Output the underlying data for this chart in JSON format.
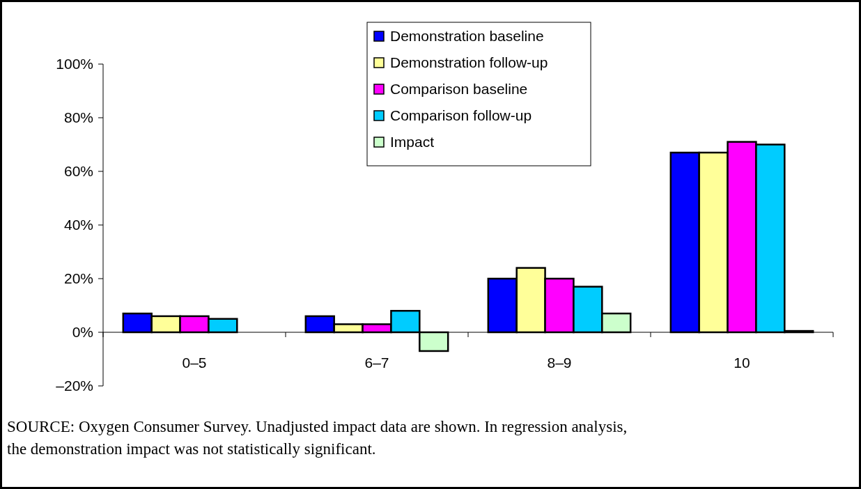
{
  "chart_data": {
    "type": "bar",
    "categories": [
      "0–5",
      "6–7",
      "8–9",
      "10"
    ],
    "series": [
      {
        "name": "Demonstration baseline",
        "color": "#0000ff",
        "values": [
          7,
          6,
          20,
          67
        ]
      },
      {
        "name": "Demonstration follow-up",
        "color": "#ffff99",
        "values": [
          6,
          3,
          24,
          67
        ]
      },
      {
        "name": "Comparison baseline",
        "color": "#ff00ff",
        "values": [
          6,
          3,
          20,
          71
        ]
      },
      {
        "name": "Comparison follow-up",
        "color": "#00ccff",
        "values": [
          5,
          8,
          17,
          70
        ]
      },
      {
        "name": "Impact",
        "color": "#ccffcc",
        "values": [
          null,
          -7,
          7,
          0.5
        ]
      }
    ],
    "ylim": [
      -20,
      100
    ],
    "yticks": [
      {
        "value": -20,
        "label": "–20%"
      },
      {
        "value": 0,
        "label": "0%"
      },
      {
        "value": 20,
        "label": "20%"
      },
      {
        "value": 40,
        "label": "40%"
      },
      {
        "value": 60,
        "label": "60%"
      },
      {
        "value": 80,
        "label": "80%"
      },
      {
        "value": 100,
        "label": "100%"
      }
    ],
    "grid": false,
    "legend": "top",
    "annotations": [
      "SOURCE:  Oxygen Consumer Survey.  Unadjusted impact data are shown.  In regression analysis, the demonstration impact was not statistically significant."
    ]
  }
}
